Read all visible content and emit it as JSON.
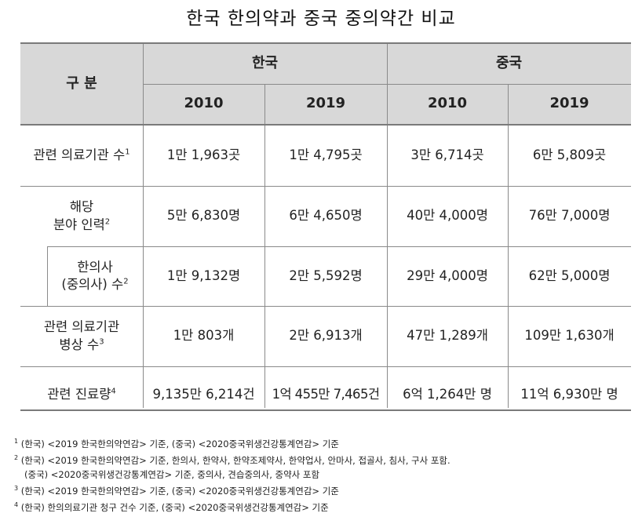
{
  "title": "한국 한의약과 중국 중의약간 비교",
  "table": {
    "header": {
      "category": "구  분",
      "korea": "한국",
      "china": "중국",
      "years": [
        "2010",
        "2019",
        "2010",
        "2019"
      ]
    },
    "rows": [
      {
        "label_lines": [
          "관련 의료기관 수"
        ],
        "sup": "1",
        "values": [
          "1만 1,963곳",
          "1만 4,795곳",
          "3만 6,714곳",
          "6만 5,809곳"
        ]
      },
      {
        "label_lines": [
          "해당",
          "분야 인력"
        ],
        "sup": "2",
        "values": [
          "5만 6,830명",
          "6만 4,650명",
          "40만 4,000명",
          "76만 7,000명"
        ]
      },
      {
        "label_lines": [
          "한의사",
          "(중의사) 수"
        ],
        "sup": "2",
        "values": [
          "1만 9,132명",
          "2만 5,592명",
          "29만 4,000명",
          "62만 5,000명"
        ]
      },
      {
        "label_lines": [
          "관련 의료기관",
          "병상 수"
        ],
        "sup": "3",
        "values": [
          "1만 803개",
          "2만 6,913개",
          "47만 1,289개",
          "109만 1,630개"
        ]
      },
      {
        "label_lines": [
          "관련 진료량"
        ],
        "sup": "4",
        "values": [
          "9,135만 6,214건",
          "1억 455만 7,465건",
          "6억 1,264만 명",
          "11억 6,930만 명"
        ]
      }
    ]
  },
  "footnotes": [
    {
      "mark": "1",
      "text": "(한국) <2019 한국한의약연감> 기준, (중국) <2020중국위생건강통계연감> 기준"
    },
    {
      "mark": "2",
      "text": "(한국) <2019 한국한의약연감> 기준, 한의사, 한약사, 한약조제약사, 한약업사, 안마사, 접골사, 침사, 구사 포함."
    },
    {
      "mark": "",
      "text": "(중국) <2020중국위생건강통계연감> 기준, 중의사, 견습중의사, 중약사 포함"
    },
    {
      "mark": "3",
      "text": "(한국) <2019 한국한의약연감> 기준, (중국) <2020중국위생건강통계연감> 기준"
    },
    {
      "mark": "4",
      "text": "(한국) 한의의료기관 청구 건수 기준, (중국) <2020중국위생건강통계연감> 기준"
    }
  ]
}
